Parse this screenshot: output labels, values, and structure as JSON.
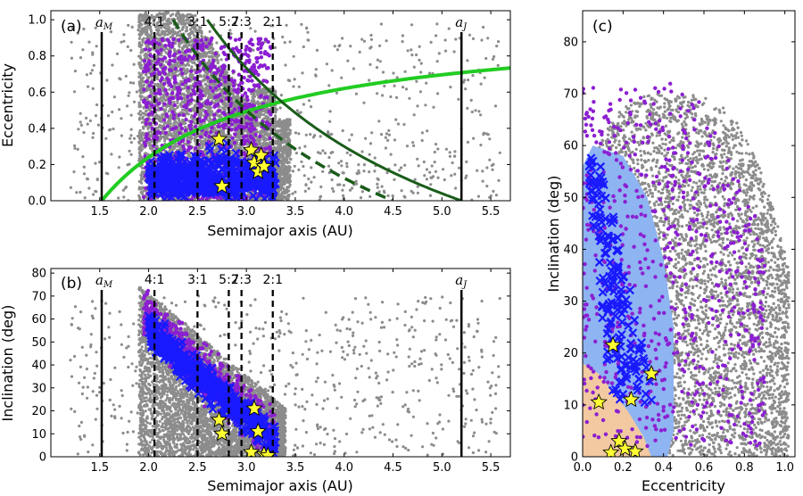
{
  "colors": {
    "background_grey": "#8c8c8c",
    "purple": "#8b1fd1",
    "blue_x": "#1a1aff",
    "light_blue": "#8eb4f2",
    "orange": "#f2c9a1",
    "star": "#ffff33",
    "green_light": "#22cc22",
    "green_dark": "#1a5c1a",
    "black": "#000000"
  },
  "chart_data": [
    {
      "panel": "(a)",
      "type": "scatter",
      "xlabel": "Semimajor axis (AU)",
      "ylabel": "Eccentricity",
      "xlim": [
        1.0,
        5.7
      ],
      "ylim": [
        0.0,
        1.05
      ],
      "xticks": [
        1.5,
        2.0,
        2.5,
        3.0,
        3.5,
        4.0,
        4.5,
        5.0,
        5.5
      ],
      "xtick_labels": [
        "1.5",
        "2.0",
        "2.5",
        "3.0",
        "3.5",
        "4.0",
        "4.5",
        "5.0",
        "5.5"
      ],
      "yticks": [
        0.0,
        0.2,
        0.4,
        0.6,
        0.8,
        1.0
      ],
      "ytick_labels": [
        "0.0",
        "0.2",
        "0.4",
        "0.6",
        "0.8",
        "1.0"
      ],
      "vertical_lines": [
        {
          "x": 1.52,
          "style": "solid",
          "label": "a",
          "sub": "M"
        },
        {
          "x": 2.06,
          "style": "dashed",
          "label": "4:1"
        },
        {
          "x": 2.5,
          "style": "dashed",
          "label": "3:1"
        },
        {
          "x": 2.82,
          "style": "dashed",
          "label": "5:2"
        },
        {
          "x": 2.95,
          "style": "dashed",
          "label": "7:3"
        },
        {
          "x": 3.27,
          "style": "dashed",
          "label": "2:1"
        },
        {
          "x": 5.2,
          "style": "solid",
          "label": "a",
          "sub": "J"
        }
      ],
      "curves": [
        {
          "name": "Mars-crossing q=1.52 AU",
          "color": "green_light",
          "style": "solid"
        },
        {
          "name": "Jupiter-crossing Q=5.2 AU",
          "color": "green_dark",
          "style": "solid"
        },
        {
          "name": "Q=4.5 AU",
          "color": "green_dark",
          "style": "dashed"
        }
      ],
      "stars": [
        {
          "x": 2.72,
          "y": 0.34
        },
        {
          "x": 2.75,
          "y": 0.08
        },
        {
          "x": 3.05,
          "y": 0.28
        },
        {
          "x": 3.08,
          "y": 0.21
        },
        {
          "x": 3.12,
          "y": 0.16
        },
        {
          "x": 3.15,
          "y": 0.25
        },
        {
          "x": 3.18,
          "y": 0.19
        }
      ]
    },
    {
      "panel": "(b)",
      "type": "scatter",
      "xlabel": "Semimajor axis (AU)",
      "ylabel": "Inclination (deg)",
      "xlim": [
        1.0,
        5.7
      ],
      "ylim": [
        0,
        82
      ],
      "xticks": [
        1.5,
        2.0,
        2.5,
        3.0,
        3.5,
        4.0,
        4.5,
        5.0,
        5.5
      ],
      "xtick_labels": [
        "1.5",
        "2.0",
        "2.5",
        "3.0",
        "3.5",
        "4.0",
        "4.5",
        "5.0",
        "5.5"
      ],
      "yticks": [
        0,
        10,
        20,
        30,
        40,
        50,
        60,
        70,
        80
      ],
      "ytick_labels": [
        "0",
        "10",
        "20",
        "30",
        "40",
        "50",
        "60",
        "70",
        "80"
      ],
      "vertical_lines": [
        {
          "x": 1.52,
          "style": "solid",
          "label": "a",
          "sub": "M"
        },
        {
          "x": 2.06,
          "style": "dashed",
          "label": "4:1"
        },
        {
          "x": 2.5,
          "style": "dashed",
          "label": "3:1"
        },
        {
          "x": 2.82,
          "style": "dashed",
          "label": "5:2"
        },
        {
          "x": 2.95,
          "style": "dashed",
          "label": "7:3"
        },
        {
          "x": 3.27,
          "style": "dashed",
          "label": "2:1"
        },
        {
          "x": 5.2,
          "style": "solid",
          "label": "a",
          "sub": "J"
        }
      ],
      "stars": [
        {
          "x": 2.72,
          "y": 16
        },
        {
          "x": 2.75,
          "y": 10
        },
        {
          "x": 3.08,
          "y": 21
        },
        {
          "x": 3.12,
          "y": 11
        },
        {
          "x": 3.05,
          "y": 2
        },
        {
          "x": 3.18,
          "y": 1
        },
        {
          "x": 3.22,
          "y": 0.5
        }
      ]
    },
    {
      "panel": "(c)",
      "type": "scatter",
      "xlabel": "Eccentricity",
      "ylabel": "Inclination (deg)",
      "xlim": [
        0.0,
        1.05
      ],
      "ylim": [
        0,
        86
      ],
      "xticks": [
        0.0,
        0.2,
        0.4,
        0.6,
        0.8,
        1.0
      ],
      "xtick_labels": [
        "0.0",
        "0.2",
        "0.4",
        "0.6",
        "0.8",
        "1.0"
      ],
      "yticks": [
        0,
        10,
        20,
        30,
        40,
        50,
        60,
        70,
        80
      ],
      "ytick_labels": [
        "0",
        "10",
        "20",
        "30",
        "40",
        "50",
        "60",
        "70",
        "80"
      ],
      "stars": [
        {
          "x": 0.08,
          "y": 10.5
        },
        {
          "x": 0.15,
          "y": 21.5
        },
        {
          "x": 0.24,
          "y": 11
        },
        {
          "x": 0.34,
          "y": 16
        },
        {
          "x": 0.18,
          "y": 3
        },
        {
          "x": 0.21,
          "y": 1.5
        },
        {
          "x": 0.26,
          "y": 1
        },
        {
          "x": 0.14,
          "y": 0.8
        }
      ]
    }
  ]
}
